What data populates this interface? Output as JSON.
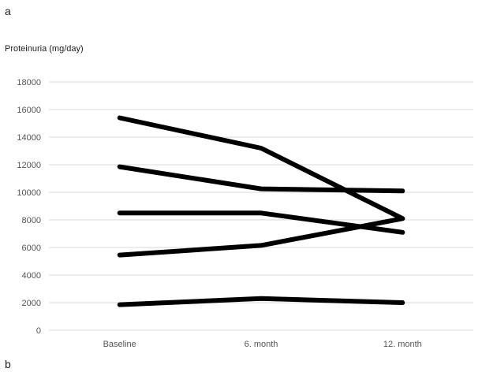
{
  "panel_labels": {
    "top": "a",
    "bottom": "b"
  },
  "chart_data": {
    "type": "line",
    "title": "",
    "xlabel": "",
    "ylabel": "Proteinuria (mg/day)",
    "categories": [
      "Baseline",
      "6. month",
      "12. month"
    ],
    "ylim": [
      0,
      18000
    ],
    "yticks": [
      0,
      2000,
      4000,
      6000,
      8000,
      10000,
      12000,
      14000,
      16000,
      18000
    ],
    "grid": true,
    "series_color": "#000000",
    "series": [
      {
        "values": [
          15400,
          13200,
          8100
        ]
      },
      {
        "values": [
          11850,
          10250,
          10100
        ]
      },
      {
        "values": [
          8500,
          8500,
          7100
        ]
      },
      {
        "values": [
          5450,
          6150,
          8100
        ]
      },
      {
        "values": [
          1850,
          2300,
          2000
        ]
      }
    ]
  }
}
